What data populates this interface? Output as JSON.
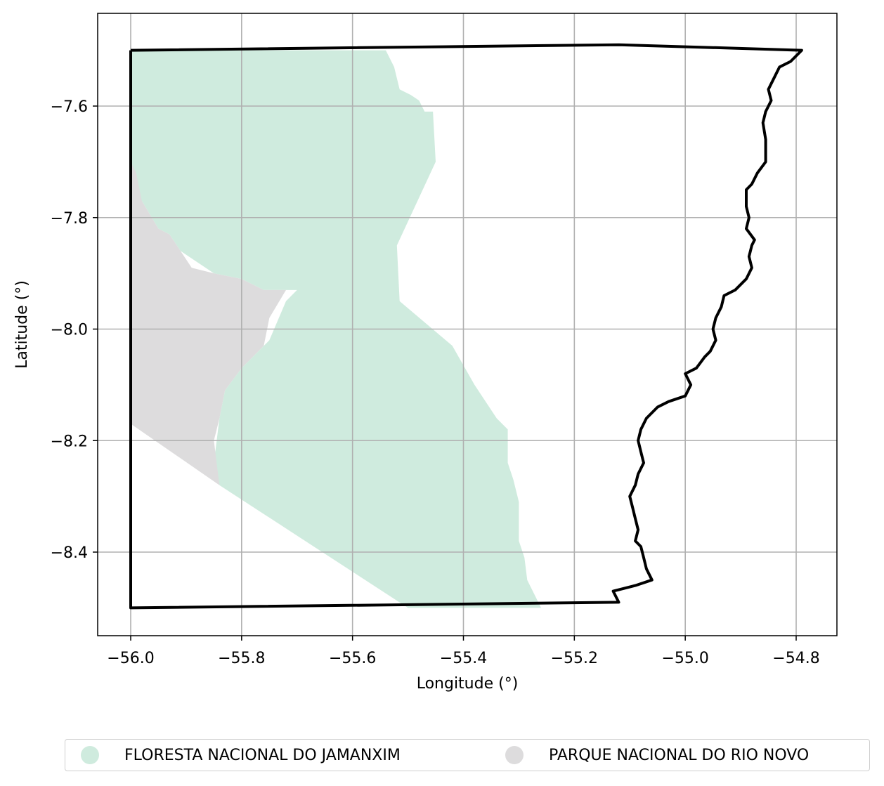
{
  "chart_data": {
    "type": "map",
    "xlabel": "Longitude (°)",
    "ylabel": "Latitude (°)",
    "xlim": [
      -56.06,
      -54.73
    ],
    "ylim": [
      -8.55,
      -7.46
    ],
    "x_ticks": [
      -56.0,
      -55.8,
      -55.6,
      -55.4,
      -55.2,
      -55.0,
      -54.8
    ],
    "x_tick_labels": [
      "−56.0",
      "−55.8",
      "−55.6",
      "−55.4",
      "−55.2",
      "−55.0",
      "−54.8"
    ],
    "y_ticks": [
      -7.6,
      -7.8,
      -8.0,
      -8.2,
      -8.4
    ],
    "y_tick_labels": [
      "−7.6",
      "−7.8",
      "−8.0",
      "−8.2",
      "−8.4"
    ],
    "grid": true,
    "legend_position": "bottom-center",
    "colors": {
      "floresta": "#cfebde",
      "parque": "#dddcdd",
      "boundary": "#000000",
      "grid": "#b0b0b0"
    },
    "legend": [
      {
        "label": "FLORESTA NACIONAL DO JAMANXIM",
        "color": "#cfebde"
      },
      {
        "label": "PARQUE NACIONAL DO RIO NOVO",
        "color": "#dddcdd"
      }
    ],
    "regions": [
      {
        "name": "FLORESTA NACIONAL DO JAMANXIM",
        "color": "#cfebde",
        "coords": [
          [
            -56.0,
            -7.5
          ],
          [
            -55.57,
            -7.5
          ],
          [
            -55.54,
            -7.5
          ],
          [
            -55.525,
            -7.53
          ],
          [
            -55.515,
            -7.57
          ],
          [
            -55.495,
            -7.58
          ],
          [
            -55.48,
            -7.59
          ],
          [
            -55.47,
            -7.61
          ],
          [
            -55.46,
            -7.61
          ],
          [
            -55.455,
            -7.61
          ],
          [
            -55.45,
            -7.7
          ],
          [
            -55.52,
            -7.85
          ],
          [
            -55.515,
            -7.95
          ],
          [
            -55.42,
            -8.03
          ],
          [
            -55.38,
            -8.1
          ],
          [
            -55.34,
            -8.16
          ],
          [
            -55.32,
            -8.18
          ],
          [
            -55.32,
            -8.24
          ],
          [
            -55.31,
            -8.27
          ],
          [
            -55.3,
            -8.31
          ],
          [
            -55.3,
            -8.38
          ],
          [
            -55.29,
            -8.41
          ],
          [
            -55.285,
            -8.45
          ],
          [
            -55.27,
            -8.48
          ],
          [
            -55.26,
            -8.5
          ],
          [
            -55.5,
            -8.5
          ],
          [
            -55.84,
            -8.28
          ],
          [
            -55.85,
            -8.24
          ],
          [
            -55.84,
            -8.16
          ],
          [
            -55.83,
            -8.11
          ],
          [
            -55.8,
            -8.07
          ],
          [
            -55.75,
            -8.02
          ],
          [
            -55.72,
            -7.95
          ],
          [
            -55.7,
            -7.93
          ],
          [
            -55.76,
            -7.93
          ],
          [
            -55.8,
            -7.91
          ],
          [
            -55.85,
            -7.9
          ],
          [
            -55.91,
            -7.86
          ],
          [
            -55.93,
            -7.83
          ],
          [
            -55.95,
            -7.82
          ],
          [
            -55.98,
            -7.77
          ],
          [
            -56.0,
            -7.77
          ]
        ]
      },
      {
        "name": "PARQUE NACIONAL DO RIO NOVO",
        "color": "#dddcdd",
        "coords": [
          [
            -56.0,
            -7.7
          ],
          [
            -55.99,
            -7.72
          ],
          [
            -55.98,
            -7.77
          ],
          [
            -55.95,
            -7.82
          ],
          [
            -55.93,
            -7.83
          ],
          [
            -55.91,
            -7.86
          ],
          [
            -55.89,
            -7.89
          ],
          [
            -55.85,
            -7.9
          ],
          [
            -55.8,
            -7.91
          ],
          [
            -55.76,
            -7.93
          ],
          [
            -55.72,
            -7.93
          ],
          [
            -55.75,
            -7.98
          ],
          [
            -55.76,
            -8.03
          ],
          [
            -55.8,
            -8.07
          ],
          [
            -55.83,
            -8.11
          ],
          [
            -55.84,
            -8.16
          ],
          [
            -55.85,
            -8.2
          ],
          [
            -55.845,
            -8.24
          ],
          [
            -55.84,
            -8.28
          ],
          [
            -56.0,
            -8.17
          ]
        ]
      }
    ],
    "boundary": [
      [
        -56.0,
        -7.5
      ],
      [
        -55.12,
        -7.49
      ],
      [
        -54.79,
        -7.5
      ],
      [
        -54.81,
        -7.52
      ],
      [
        -54.83,
        -7.53
      ],
      [
        -54.84,
        -7.55
      ],
      [
        -54.85,
        -7.57
      ],
      [
        -54.845,
        -7.59
      ],
      [
        -54.855,
        -7.61
      ],
      [
        -54.86,
        -7.63
      ],
      [
        -54.855,
        -7.66
      ],
      [
        -54.855,
        -7.7
      ],
      [
        -54.87,
        -7.72
      ],
      [
        -54.88,
        -7.74
      ],
      [
        -54.89,
        -7.75
      ],
      [
        -54.89,
        -7.78
      ],
      [
        -54.885,
        -7.8
      ],
      [
        -54.89,
        -7.82
      ],
      [
        -54.875,
        -7.84
      ],
      [
        -54.88,
        -7.85
      ],
      [
        -54.885,
        -7.87
      ],
      [
        -54.88,
        -7.89
      ],
      [
        -54.89,
        -7.91
      ],
      [
        -54.91,
        -7.93
      ],
      [
        -54.93,
        -7.94
      ],
      [
        -54.935,
        -7.96
      ],
      [
        -54.945,
        -7.98
      ],
      [
        -54.95,
        -8.0
      ],
      [
        -54.945,
        -8.02
      ],
      [
        -54.955,
        -8.04
      ],
      [
        -54.965,
        -8.05
      ],
      [
        -54.98,
        -8.07
      ],
      [
        -55.0,
        -8.08
      ],
      [
        -54.99,
        -8.1
      ],
      [
        -55.0,
        -8.12
      ],
      [
        -55.03,
        -8.13
      ],
      [
        -55.05,
        -8.14
      ],
      [
        -55.07,
        -8.16
      ],
      [
        -55.08,
        -8.18
      ],
      [
        -55.085,
        -8.2
      ],
      [
        -55.08,
        -8.22
      ],
      [
        -55.075,
        -8.24
      ],
      [
        -55.085,
        -8.26
      ],
      [
        -55.09,
        -8.28
      ],
      [
        -55.1,
        -8.3
      ],
      [
        -55.095,
        -8.32
      ],
      [
        -55.09,
        -8.34
      ],
      [
        -55.085,
        -8.36
      ],
      [
        -55.09,
        -8.38
      ],
      [
        -55.08,
        -8.39
      ],
      [
        -55.075,
        -8.41
      ],
      [
        -55.07,
        -8.43
      ],
      [
        -55.06,
        -8.45
      ],
      [
        -55.09,
        -8.46
      ],
      [
        -55.13,
        -8.47
      ],
      [
        -55.12,
        -8.49
      ],
      [
        -56.0,
        -8.5
      ],
      [
        -56.0,
        -7.5
      ]
    ]
  }
}
